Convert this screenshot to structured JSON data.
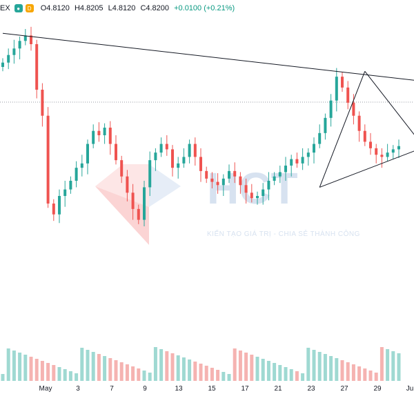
{
  "legend": {
    "symbol": "EX",
    "eye_icon": "eye-icon",
    "d_badge": "D",
    "open": "O4.8120",
    "high": "H4.8205",
    "low": "L4.8120",
    "close": "C4.8200",
    "change": "+0.0100 (+0.21%)",
    "up_color": "#26a69a",
    "down_color": "#ef5350"
  },
  "watermark": {
    "logo": "HCT",
    "tagline": "KIẾN TẠO GIÁ TRỊ - CHIA SẺ THÀNH CÔNG"
  },
  "chart_data": {
    "type": "candlestick",
    "x_ticks": [
      "May",
      "3",
      "7",
      "9",
      "13",
      "15",
      "17",
      "21",
      "23",
      "27",
      "29",
      "Ju"
    ],
    "price_range": [
      4.6,
      4.88
    ],
    "dashed_level": 4.8,
    "grid": false,
    "colors": {
      "up": "#26a69a",
      "down": "#ef5350",
      "trendline": "#131722"
    },
    "trendlines": [
      {
        "from": [
          0,
          4.862
        ],
        "to": [
          74,
          4.818
        ]
      },
      {
        "from": [
          56,
          4.72
        ],
        "to": [
          74,
          4.756
        ]
      },
      {
        "from": [
          56,
          4.72
        ],
        "to": [
          64,
          4.827
        ]
      },
      {
        "from": [
          64,
          4.827
        ],
        "to": [
          74,
          4.76
        ]
      }
    ]
  }
}
